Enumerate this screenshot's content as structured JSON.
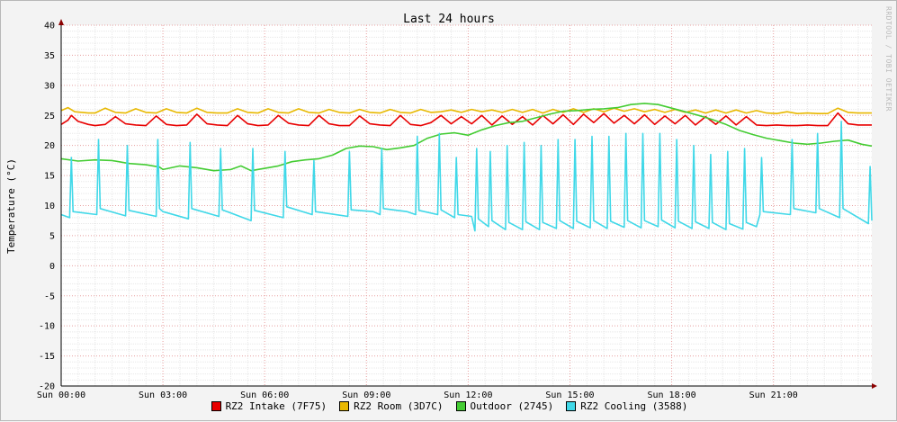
{
  "chart_data": {
    "type": "line",
    "title": "Last 24 hours",
    "ylabel": "Temperature (°C)",
    "xlabel": "",
    "watermark": "RRDTOOL / TOBI OETIKER",
    "ylim": [
      -20,
      40
    ],
    "y_ticks": [
      "40",
      "35",
      "30",
      "25",
      "20",
      "15",
      "10",
      "5",
      "0",
      "-5",
      "-10",
      "-15",
      "-20"
    ],
    "xlim_hours": [
      0,
      23.9
    ],
    "x_ticks": [
      {
        "label": "Sun 00:00",
        "hour": 0
      },
      {
        "label": "Sun 03:00",
        "hour": 3
      },
      {
        "label": "Sun 06:00",
        "hour": 6
      },
      {
        "label": "Sun 09:00",
        "hour": 9
      },
      {
        "label": "Sun 12:00",
        "hour": 12
      },
      {
        "label": "Sun 15:00",
        "hour": 15
      },
      {
        "label": "Sun 18:00",
        "hour": 18
      },
      {
        "label": "Sun 21:00",
        "hour": 21
      }
    ],
    "grid": true,
    "legend_position": "bottom",
    "colors": {
      "background": "#f3f3f3",
      "canvas": "#ffffff",
      "grid_minor": "#e8e8e8",
      "grid_major": "#e8a0a0",
      "axis": "#000000",
      "arrow": "#8b0000"
    },
    "series": [
      {
        "name": "RZ2 Intake (7F75)",
        "color": "#e80000",
        "x": [
          0,
          0.2,
          0.3,
          0.5,
          0.8,
          1.0,
          1.3,
          1.6,
          1.9,
          2.2,
          2.5,
          2.8,
          3.1,
          3.4,
          3.7,
          4.0,
          4.3,
          4.6,
          4.9,
          5.2,
          5.5,
          5.8,
          6.1,
          6.4,
          6.7,
          7.0,
          7.3,
          7.6,
          7.9,
          8.2,
          8.5,
          8.8,
          9.1,
          9.4,
          9.7,
          10.0,
          10.3,
          10.6,
          10.9,
          11.2,
          11.5,
          11.8,
          12.1,
          12.4,
          12.7,
          13.0,
          13.3,
          13.6,
          13.9,
          14.2,
          14.5,
          14.8,
          15.1,
          15.4,
          15.7,
          16.0,
          16.3,
          16.6,
          16.9,
          17.2,
          17.5,
          17.8,
          18.1,
          18.4,
          18.7,
          19.0,
          19.3,
          19.6,
          19.9,
          20.2,
          20.5,
          20.8,
          21.1,
          21.4,
          21.7,
          22.0,
          22.3,
          22.6,
          22.9,
          23.2,
          23.5,
          23.9
        ],
        "values": [
          23.5,
          24.2,
          25.0,
          24.0,
          23.5,
          23.3,
          23.5,
          24.8,
          23.6,
          23.4,
          23.3,
          24.9,
          23.5,
          23.3,
          23.4,
          25.2,
          23.6,
          23.4,
          23.3,
          25.0,
          23.6,
          23.3,
          23.4,
          25.0,
          23.7,
          23.4,
          23.3,
          25.0,
          23.6,
          23.3,
          23.3,
          24.9,
          23.6,
          23.4,
          23.3,
          25.0,
          23.5,
          23.3,
          23.8,
          25.0,
          23.6,
          24.8,
          23.6,
          25.0,
          23.4,
          24.9,
          23.5,
          24.8,
          23.4,
          25.0,
          23.6,
          25.1,
          23.5,
          25.2,
          23.8,
          25.3,
          23.7,
          25.0,
          23.6,
          25.1,
          23.5,
          24.9,
          23.6,
          25.0,
          23.4,
          24.8,
          23.5,
          24.9,
          23.4,
          24.8,
          23.4,
          23.3,
          23.4,
          23.3,
          23.3,
          23.4,
          23.3,
          23.3,
          25.4,
          23.6,
          23.4,
          23.4
        ]
      },
      {
        "name": "RZ2 Room (3D7C)",
        "color": "#e8b800",
        "x": [
          0,
          0.2,
          0.4,
          0.8,
          1.0,
          1.3,
          1.6,
          1.9,
          2.2,
          2.5,
          2.8,
          3.1,
          3.4,
          3.7,
          4.0,
          4.3,
          4.6,
          4.9,
          5.2,
          5.5,
          5.8,
          6.1,
          6.4,
          6.7,
          7.0,
          7.3,
          7.6,
          7.9,
          8.2,
          8.5,
          8.8,
          9.1,
          9.4,
          9.7,
          10.0,
          10.3,
          10.6,
          10.9,
          11.2,
          11.5,
          11.8,
          12.1,
          12.4,
          12.7,
          13.0,
          13.3,
          13.6,
          13.9,
          14.2,
          14.5,
          14.8,
          15.1,
          15.4,
          15.7,
          16.0,
          16.3,
          16.6,
          16.9,
          17.2,
          17.5,
          17.8,
          18.1,
          18.4,
          18.7,
          19.0,
          19.3,
          19.6,
          19.9,
          20.2,
          20.5,
          20.8,
          21.1,
          21.4,
          21.7,
          22.0,
          22.3,
          22.6,
          22.9,
          23.2,
          23.5,
          23.9
        ],
        "values": [
          25.8,
          26.3,
          25.6,
          25.4,
          25.4,
          26.2,
          25.5,
          25.4,
          26.1,
          25.5,
          25.4,
          26.1,
          25.5,
          25.4,
          26.2,
          25.5,
          25.4,
          25.4,
          26.1,
          25.5,
          25.4,
          26.1,
          25.5,
          25.4,
          26.1,
          25.5,
          25.4,
          26.0,
          25.5,
          25.4,
          26.0,
          25.5,
          25.4,
          26.0,
          25.5,
          25.4,
          26.0,
          25.5,
          25.6,
          25.9,
          25.5,
          26.0,
          25.6,
          25.9,
          25.5,
          26.0,
          25.5,
          26.0,
          25.4,
          26.0,
          25.5,
          26.1,
          25.5,
          26.1,
          25.6,
          26.2,
          25.7,
          26.1,
          25.6,
          26.0,
          25.5,
          26.0,
          25.5,
          25.9,
          25.4,
          25.9,
          25.4,
          25.9,
          25.4,
          25.8,
          25.4,
          25.3,
          25.6,
          25.3,
          25.4,
          25.3,
          25.3,
          26.2,
          25.5,
          25.4,
          25.4
        ]
      },
      {
        "name": "Outdoor (2745)",
        "color": "#44cc33",
        "x": [
          0,
          0.5,
          1.0,
          1.5,
          2.0,
          2.5,
          2.9,
          3.0,
          3.5,
          4.0,
          4.5,
          5.0,
          5.3,
          5.6,
          6.0,
          6.4,
          6.8,
          7.2,
          7.6,
          8.0,
          8.4,
          8.8,
          9.2,
          9.6,
          10.0,
          10.4,
          10.8,
          11.2,
          11.6,
          12.0,
          12.4,
          12.8,
          13.2,
          13.6,
          14.0,
          14.4,
          14.8,
          15.2,
          15.6,
          16.0,
          16.4,
          16.8,
          17.2,
          17.6,
          18.0,
          18.4,
          18.8,
          19.2,
          19.6,
          20.0,
          20.4,
          20.8,
          21.2,
          21.6,
          22.0,
          22.4,
          22.8,
          23.2,
          23.6,
          23.9
        ],
        "values": [
          17.8,
          17.4,
          17.6,
          17.5,
          17.0,
          16.8,
          16.4,
          16.0,
          16.6,
          16.3,
          15.8,
          16.0,
          16.6,
          15.8,
          16.2,
          16.6,
          17.3,
          17.6,
          17.8,
          18.4,
          19.5,
          19.9,
          19.8,
          19.3,
          19.6,
          20.0,
          21.2,
          21.9,
          22.1,
          21.7,
          22.6,
          23.3,
          23.8,
          24.0,
          24.6,
          25.2,
          25.7,
          25.8,
          26.0,
          26.1,
          26.3,
          26.8,
          27.0,
          26.8,
          26.2,
          25.6,
          25.0,
          24.3,
          23.5,
          22.5,
          21.8,
          21.2,
          20.8,
          20.4,
          20.2,
          20.4,
          20.7,
          20.9,
          20.2,
          19.9
        ]
      },
      {
        "name": "RZ2 Cooling (3588)",
        "color": "#40d8e8",
        "x": [
          0,
          0.25,
          0.3,
          0.35,
          1.05,
          1.1,
          1.15,
          1.9,
          1.95,
          2.0,
          2.8,
          2.85,
          2.9,
          3.0,
          3.75,
          3.8,
          3.85,
          4.65,
          4.7,
          4.75,
          5.6,
          5.65,
          5.7,
          6.55,
          6.6,
          6.65,
          7.4,
          7.45,
          7.5,
          8.45,
          8.5,
          8.55,
          9.2,
          9.4,
          9.45,
          9.5,
          10.2,
          10.45,
          10.5,
          10.55,
          11.1,
          11.15,
          11.2,
          11.6,
          11.65,
          11.7,
          12.1,
          12.2,
          12.25,
          12.3,
          12.6,
          12.65,
          12.7,
          13.1,
          13.15,
          13.2,
          13.6,
          13.65,
          13.7,
          14.1,
          14.15,
          14.2,
          14.6,
          14.65,
          14.7,
          15.1,
          15.15,
          15.2,
          15.6,
          15.65,
          15.7,
          16.1,
          16.15,
          16.2,
          16.6,
          16.65,
          16.7,
          17.1,
          17.15,
          17.2,
          17.6,
          17.65,
          17.7,
          18.1,
          18.15,
          18.2,
          18.6,
          18.65,
          18.7,
          19.1,
          19.15,
          19.2,
          19.6,
          19.65,
          19.7,
          20.1,
          20.15,
          20.2,
          20.5,
          20.6,
          20.65,
          20.7,
          21.5,
          21.55,
          21.6,
          22.25,
          22.3,
          22.35,
          22.95,
          23.0,
          23.05,
          23.8,
          23.85,
          23.9
        ],
        "values": [
          8.5,
          8.0,
          18.0,
          9.0,
          8.5,
          21.0,
          9.5,
          8.3,
          20.0,
          9.2,
          8.2,
          21.0,
          9.5,
          9.0,
          7.8,
          20.5,
          9.5,
          8.2,
          19.5,
          9.3,
          7.5,
          19.5,
          9.2,
          8.0,
          19.0,
          9.8,
          8.5,
          17.5,
          9.0,
          8.2,
          19.0,
          9.3,
          9.0,
          8.5,
          19.5,
          9.5,
          9.0,
          8.5,
          21.5,
          9.2,
          8.5,
          22.0,
          9.3,
          8.0,
          18.0,
          8.5,
          8.2,
          5.8,
          19.5,
          7.8,
          6.5,
          19.0,
          7.5,
          6.0,
          20.0,
          7.2,
          6.0,
          20.5,
          7.3,
          6.0,
          20.0,
          7.2,
          6.2,
          21.0,
          7.5,
          6.2,
          21.0,
          7.4,
          6.3,
          21.5,
          7.5,
          6.2,
          21.5,
          7.4,
          6.4,
          22.0,
          7.5,
          6.3,
          22.0,
          7.5,
          6.5,
          22.0,
          7.6,
          6.3,
          21.0,
          7.4,
          6.2,
          20.0,
          7.3,
          6.2,
          18.5,
          7.2,
          6.0,
          19.0,
          7.0,
          6.1,
          19.5,
          7.2,
          6.5,
          8.5,
          18.0,
          9.0,
          8.5,
          21.0,
          9.5,
          8.8,
          22.0,
          9.5,
          8.0,
          24.0,
          9.5,
          7.0,
          16.5,
          7.5
        ]
      }
    ]
  }
}
